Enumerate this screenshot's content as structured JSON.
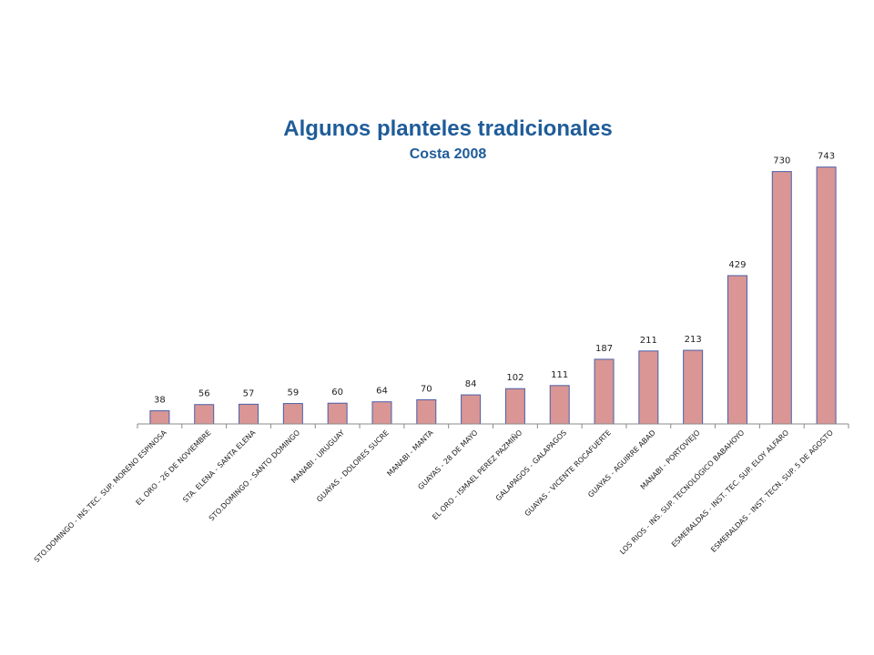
{
  "chart_data": {
    "type": "bar",
    "title": "Algunos planteles tradicionales",
    "subtitle": "Costa 2008",
    "xlabel": "",
    "ylabel": "",
    "ylim": [
      0,
      800
    ],
    "grid": false,
    "legend": "none",
    "bar_color": "#d99694",
    "bar_border_color": "#4a5ea8",
    "categories": [
      "STO.DOMINGO - INS.TEC. SUP. MORENO ESPINOSA",
      "EL ORO - 26 DE NOVIEMBRE",
      "STA. ELENA - SANTA ELENA",
      "STO.DOMINGO - SANTO DOMINGO",
      "MANABI - URUGUAY",
      "GUAYAS - DOLORES SUCRE",
      "MANABI - MANTA",
      "GUAYAS - 28 DE MAYO",
      "EL ORO - ISMAEL PEREZ PAZMIÑO",
      "GALAPAGOS - GALAPAGOS",
      "GUAYAS - VICENTE ROCAFUERTE",
      "GUAYAS - AGUIRRE ABAD",
      "MANABI - PORTOVIEJO",
      "LOS RIOS - INS. SUP. TECNOLÓGICO BABAHOYO",
      "ESMERALDAS - INST. TEC. SUP. ELOY ALFARO",
      "ESMERALDAS - INST. TECN. SUP. 5 DE AGOSTO"
    ],
    "values": [
      38,
      56,
      57,
      59,
      60,
      64,
      70,
      84,
      102,
      111,
      187,
      211,
      213,
      429,
      730,
      743
    ]
  }
}
